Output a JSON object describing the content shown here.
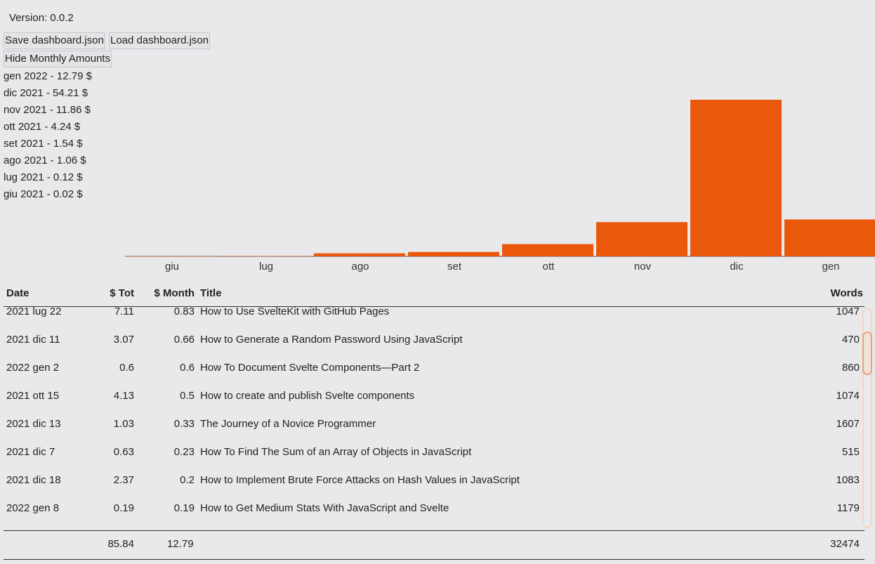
{
  "version_label": "Version: 0.0.2",
  "buttons": {
    "save": "Save dashboard.json",
    "load": "Load dashboard.json",
    "hide_monthly": "Hide Monthly Amounts"
  },
  "monthly_amounts": [
    "gen 2022 - 12.79 $",
    "dic 2021 - 54.21 $",
    "nov 2021 - 11.86 $",
    "ott 2021 - 4.24 $",
    "set 2021 - 1.54 $",
    "ago 2021 - 1.06 $",
    "lug 2021 - 0.12 $",
    "giu 2021 - 0.02 $"
  ],
  "chart_data": {
    "type": "bar",
    "categories": [
      "giu",
      "lug",
      "ago",
      "set",
      "ott",
      "nov",
      "dic",
      "gen"
    ],
    "values": [
      0.02,
      0.12,
      1.06,
      1.54,
      4.24,
      11.86,
      54.21,
      12.79
    ],
    "bar_color": "#ea580c",
    "axis_color": "#555566",
    "title": "",
    "xlabel": "",
    "ylabel": ""
  },
  "table": {
    "headers": {
      "date": "Date",
      "tot": "$ Tot",
      "month": "$ Month",
      "title": "Title",
      "words": "Words"
    },
    "rows": [
      {
        "date": "2021 lug 22",
        "tot": "7.11",
        "month": "0.83",
        "title": "How to Use SvelteKit with GitHub Pages",
        "words": "1047"
      },
      {
        "date": "2021 dic 11",
        "tot": "3.07",
        "month": "0.66",
        "title": "How to Generate a Random Password Using JavaScript",
        "words": "470"
      },
      {
        "date": "2022 gen 2",
        "tot": "0.6",
        "month": "0.6",
        "title": "How To Document Svelte Components—Part 2",
        "words": "860"
      },
      {
        "date": "2021 ott 15",
        "tot": "4.13",
        "month": "0.5",
        "title": "How to create and publish Svelte components",
        "words": "1074"
      },
      {
        "date": "2021 dic 13",
        "tot": "1.03",
        "month": "0.33",
        "title": "The Journey of a Novice Programmer",
        "words": "1607"
      },
      {
        "date": "2021 dic 7",
        "tot": "0.63",
        "month": "0.23",
        "title": "How To Find The Sum of an Array of Objects in JavaScript",
        "words": "515"
      },
      {
        "date": "2021 dic 18",
        "tot": "2.37",
        "month": "0.2",
        "title": "How to Implement Brute Force Attacks on Hash Values in JavaScript",
        "words": "1083"
      },
      {
        "date": "2022 gen 8",
        "tot": "0.19",
        "month": "0.19",
        "title": "How to Get Medium Stats With JavaScript and Svelte",
        "words": "1179"
      }
    ],
    "footer": {
      "tot": "85.84",
      "month": "12.79",
      "words": "32474"
    }
  }
}
